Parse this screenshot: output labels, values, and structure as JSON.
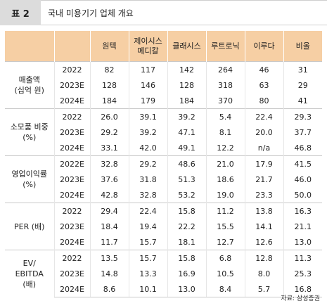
{
  "header": {
    "table_number": "표 2",
    "title": "국내 미용기기 업체 개요"
  },
  "columns": [
    "원텍",
    "제이시스\n메디칼",
    "클래시스",
    "루트로닉",
    "이루다",
    "비올"
  ],
  "groups": [
    {
      "label": "매출액\n(십억 원)",
      "rows": [
        {
          "year": "2022",
          "values": [
            "82",
            "117",
            "142",
            "264",
            "46",
            "31"
          ]
        },
        {
          "year": "2023E",
          "values": [
            "128",
            "146",
            "128",
            "318",
            "63",
            "29"
          ]
        },
        {
          "year": "2024E",
          "values": [
            "184",
            "179",
            "184",
            "370",
            "80",
            "41"
          ]
        }
      ]
    },
    {
      "label": "소모품 비중\n(%)",
      "rows": [
        {
          "year": "2022",
          "values": [
            "26.0",
            "39.1",
            "39.2",
            "5.4",
            "22.4",
            "29.3"
          ]
        },
        {
          "year": "2023E",
          "values": [
            "29.2",
            "39.2",
            "47.1",
            "8.1",
            "20.0",
            "37.7"
          ]
        },
        {
          "year": "2024E",
          "values": [
            "33.1",
            "42.0",
            "49.1",
            "12.2",
            "n/a",
            "46.8"
          ]
        }
      ]
    },
    {
      "label": "영업이익률\n(%)",
      "rows": [
        {
          "year": "2022E",
          "values": [
            "32.8",
            "29.2",
            "48.6",
            "21.0",
            "17.9",
            "41.5"
          ]
        },
        {
          "year": "2023E",
          "values": [
            "37.6",
            "31.8",
            "51.3",
            "18.6",
            "21.7",
            "46.0"
          ]
        },
        {
          "year": "2024E",
          "values": [
            "42.8",
            "32.8",
            "53.2",
            "19.0",
            "23.3",
            "50.0"
          ]
        }
      ]
    },
    {
      "label": "PER (배)",
      "rows": [
        {
          "year": "2022",
          "values": [
            "29.4",
            "22.4",
            "15.8",
            "11.2",
            "13.8",
            "16.3"
          ]
        },
        {
          "year": "2023E",
          "values": [
            "18.4",
            "19.4",
            "22.2",
            "15.5",
            "14.1",
            "21.1"
          ]
        },
        {
          "year": "2024E",
          "values": [
            "11.7",
            "15.7",
            "18.1",
            "12.7",
            "12.6",
            "13.0"
          ]
        }
      ]
    },
    {
      "label": "EV/\nEBITDA\n(배)",
      "rows": [
        {
          "year": "2022",
          "values": [
            "13.5",
            "15.7",
            "15.8",
            "6.8",
            "12.8",
            "11.3"
          ]
        },
        {
          "year": "2023E",
          "values": [
            "14.8",
            "13.3",
            "16.9",
            "10.5",
            "8.0",
            "25.3"
          ]
        },
        {
          "year": "2024E",
          "values": [
            "8.6",
            "10.1",
            "13.0",
            "8.4",
            "5.7",
            "16.8"
          ]
        }
      ]
    }
  ],
  "source": "자료: 삼성증권",
  "colors": {
    "header_bg": "#f6cfa4",
    "title_tag_bg": "#dcdcdc"
  }
}
